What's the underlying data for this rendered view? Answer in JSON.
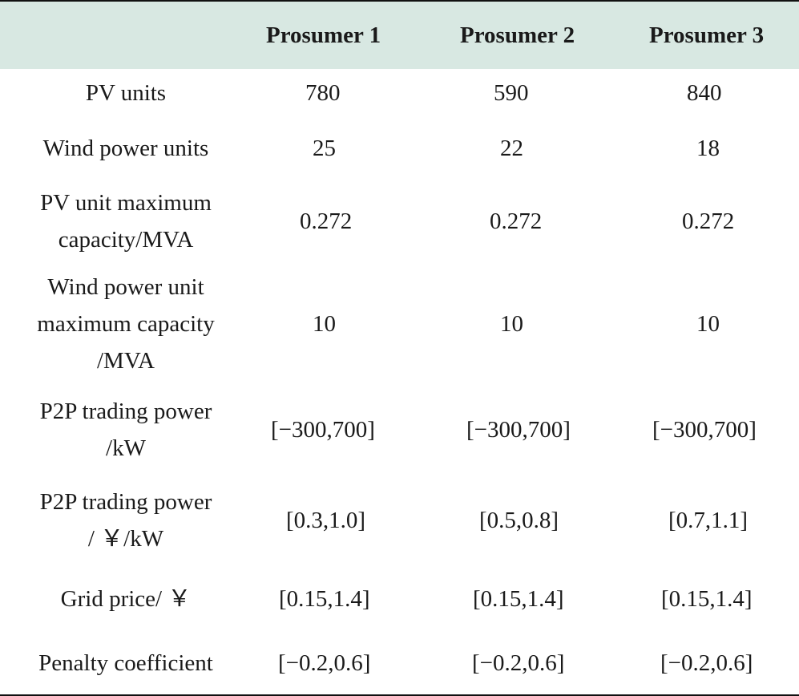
{
  "table": {
    "headers": [
      "",
      "Prosumer 1",
      "Prosumer 2",
      "Prosumer 3"
    ],
    "rows": [
      {
        "label": [
          "PV units"
        ],
        "values": [
          "780",
          "590",
          "840"
        ]
      },
      {
        "label": [
          "Wind power units"
        ],
        "values": [
          "25",
          "22",
          "18"
        ]
      },
      {
        "label": [
          "PV unit maximum",
          "capacity/MVA"
        ],
        "values": [
          "0.272",
          "0.272",
          "0.272"
        ]
      },
      {
        "label": [
          "Wind power unit",
          "maximum capacity",
          "/MVA"
        ],
        "values": [
          "10",
          "10",
          "10"
        ]
      },
      {
        "label": [
          "P2P trading power",
          "/kW"
        ],
        "values": [
          "[−300,700]",
          "[−300,700]",
          "[−300,700]"
        ]
      },
      {
        "label": [
          "P2P trading power",
          "/ ￥/kW"
        ],
        "values": [
          "[0.3,1.0]",
          "[0.5,0.8]",
          "[0.7,1.1]"
        ]
      },
      {
        "label": [
          "Grid price/ ￥"
        ],
        "values": [
          "[0.15,1.4]",
          "[0.15,1.4]",
          "[0.15,1.4]"
        ]
      },
      {
        "label": [
          "Penalty coefficient"
        ],
        "values": [
          "[−0.2,0.6]",
          "[−0.2,0.6]",
          "[−0.2,0.6]"
        ]
      }
    ]
  },
  "colors": {
    "header_bg": "#d8e8e2",
    "rule": "#111111",
    "text": "#1a1a1a"
  }
}
